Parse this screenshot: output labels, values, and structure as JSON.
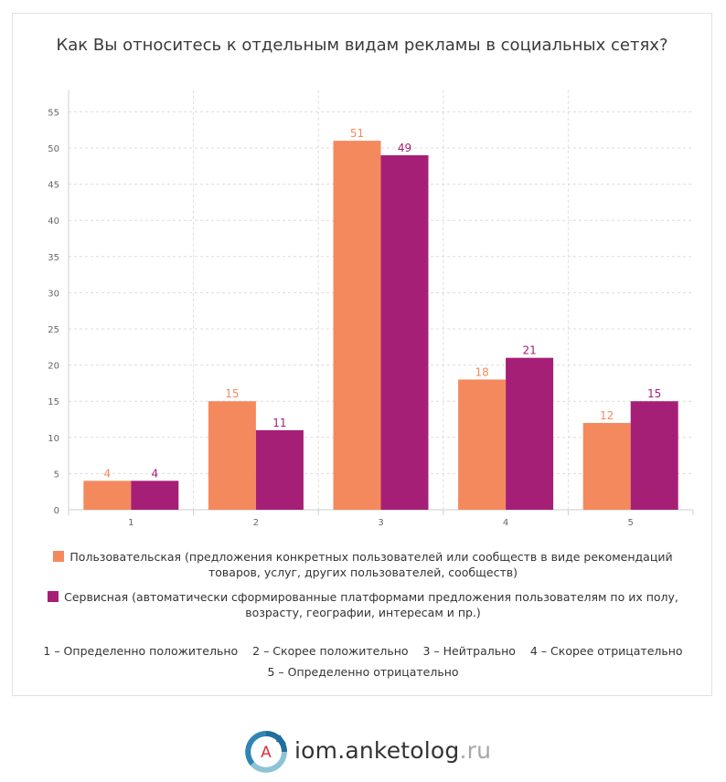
{
  "chart_data": {
    "type": "bar",
    "title": "Как Вы относитесь к отдельным видам рекламы в социальных сетях?",
    "categories": [
      "1",
      "2",
      "3",
      "4",
      "5"
    ],
    "series": [
      {
        "name": "Пользовательская (предложения конкретных пользователей или сообществ в виде рекомендаций товаров, услуг, других пользователей, сообществ)",
        "color": "#f5895e",
        "values": [
          4,
          15,
          51,
          18,
          12
        ]
      },
      {
        "name": "Сервисная (автоматически сформированные платформами предложения пользователям по их полу, возрасту, географии, интересам и пр.)",
        "color": "#a61f76",
        "values": [
          4,
          11,
          49,
          21,
          15
        ]
      }
    ],
    "yticks": [
      0,
      5,
      10,
      15,
      20,
      25,
      30,
      35,
      40,
      45,
      50,
      55
    ],
    "ylim": [
      0,
      58
    ],
    "grid": true,
    "legend_position": "bottom",
    "category_notes": [
      "1 – Определенно положительно",
      "2 – Скорее положительно",
      "3 – Нейтрально",
      "4 – Скорее отрицательно",
      "5 – Определенно отрицательно"
    ]
  },
  "brand": {
    "logo_letter": "A",
    "name": "iom.anketolog",
    "tld": ".ru",
    "colors": {
      "blue": "#1f6e9c",
      "light": "#8ec3d6",
      "red": "#d9323a"
    }
  }
}
